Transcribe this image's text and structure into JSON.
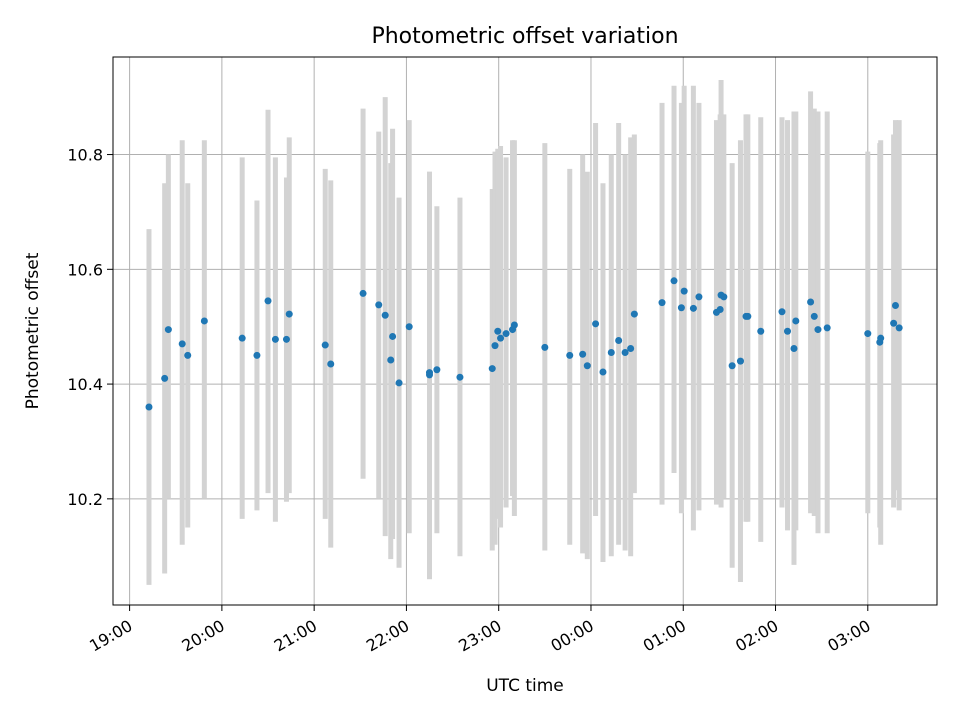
{
  "chart_data": {
    "type": "scatter",
    "title": "Photometric offset variation",
    "xlabel": "UTC time",
    "ylabel": "Photometric offset",
    "x_ticks": [
      "19:00",
      "20:00",
      "21:00",
      "22:00",
      "23:00",
      "00:00",
      "01:00",
      "02:00",
      "03:00"
    ],
    "y_ticks": [
      "10.2",
      "10.4",
      "10.6",
      "10.8"
    ],
    "y_tick_values": [
      10.2,
      10.4,
      10.6,
      10.8
    ],
    "xlim_hours": [
      18.82,
      27.75
    ],
    "ylim": [
      10.015,
      10.97
    ],
    "grid": true,
    "colors": {
      "point": "#1f77b4",
      "errorbar": "#d3d3d3",
      "grid": "#b0b0b0"
    },
    "series": [
      {
        "x": [
          19.21,
          19.38,
          19.42,
          19.57,
          19.63,
          19.81,
          20.22,
          20.38,
          20.5,
          20.58,
          20.7,
          20.73,
          21.12,
          21.18,
          21.53,
          21.7,
          21.77,
          21.83,
          21.85,
          21.92,
          22.03,
          22.25,
          22.25,
          22.33,
          22.58,
          22.93,
          22.96,
          22.99,
          23.02,
          23.08,
          23.15,
          23.17,
          23.5,
          23.77,
          23.91,
          23.96,
          24.05,
          24.13,
          24.22,
          24.3,
          24.37,
          24.43,
          24.47,
          24.77,
          24.9,
          24.98,
          25.01,
          25.11,
          25.17,
          25.36,
          25.4,
          25.41,
          25.44,
          25.53,
          25.62,
          25.68,
          25.7,
          25.84,
          26.07,
          26.13,
          26.2,
          26.22,
          26.38,
          26.42,
          26.46,
          26.56,
          27.0,
          27.13,
          27.14,
          27.28,
          27.3,
          27.34
        ],
        "y": [
          10.36,
          10.41,
          10.495,
          10.47,
          10.45,
          10.51,
          10.48,
          10.45,
          10.545,
          10.478,
          10.478,
          10.522,
          10.468,
          10.435,
          10.558,
          10.538,
          10.52,
          10.442,
          10.483,
          10.402,
          10.5,
          10.42,
          10.416,
          10.425,
          10.412,
          10.427,
          10.467,
          10.492,
          10.48,
          10.488,
          10.495,
          10.503,
          10.464,
          10.45,
          10.452,
          10.432,
          10.505,
          10.421,
          10.455,
          10.476,
          10.455,
          10.462,
          10.522,
          10.542,
          10.58,
          10.533,
          10.562,
          10.532,
          10.552,
          10.525,
          10.53,
          10.555,
          10.552,
          10.432,
          10.44,
          10.518,
          10.518,
          10.492,
          10.526,
          10.492,
          10.462,
          10.51,
          10.543,
          10.518,
          10.495,
          10.498,
          10.488,
          10.473,
          10.48,
          10.506,
          10.537,
          10.498
        ],
        "yerr_low": [
          10.05,
          10.07,
          10.2,
          10.12,
          10.15,
          10.2,
          10.165,
          10.18,
          10.21,
          10.16,
          10.195,
          10.21,
          10.165,
          10.115,
          10.235,
          10.2,
          10.135,
          10.095,
          10.13,
          10.08,
          10.14,
          10.06,
          10.06,
          10.14,
          10.1,
          10.11,
          10.12,
          10.165,
          10.15,
          10.185,
          10.205,
          10.17,
          10.11,
          10.12,
          10.105,
          10.095,
          10.17,
          10.09,
          10.1,
          10.12,
          10.11,
          10.1,
          10.21,
          10.19,
          10.245,
          10.175,
          10.2,
          10.145,
          10.18,
          10.19,
          10.2,
          10.185,
          10.2,
          10.08,
          10.055,
          10.16,
          10.16,
          10.125,
          10.185,
          10.145,
          10.085,
          10.145,
          10.175,
          10.17,
          10.14,
          10.14,
          10.175,
          10.15,
          10.12,
          10.185,
          10.215,
          10.18
        ],
        "yerr_high": [
          10.67,
          10.75,
          10.8,
          10.825,
          10.75,
          10.825,
          10.795,
          10.72,
          10.878,
          10.795,
          10.76,
          10.83,
          10.775,
          10.755,
          10.88,
          10.84,
          10.9,
          10.785,
          10.845,
          10.725,
          10.86,
          10.77,
          10.77,
          10.71,
          10.725,
          10.74,
          10.805,
          10.81,
          10.815,
          10.795,
          10.825,
          10.825,
          10.82,
          10.775,
          10.8,
          10.77,
          10.855,
          10.75,
          10.8,
          10.855,
          10.8,
          10.83,
          10.835,
          10.89,
          10.92,
          10.89,
          10.92,
          10.92,
          10.89,
          10.86,
          10.87,
          10.93,
          10.87,
          10.785,
          10.825,
          10.87,
          10.87,
          10.865,
          10.865,
          10.86,
          10.875,
          10.875,
          10.91,
          10.88,
          10.875,
          10.875,
          10.805,
          10.82,
          10.825,
          10.835,
          10.86,
          10.86
        ]
      }
    ]
  }
}
